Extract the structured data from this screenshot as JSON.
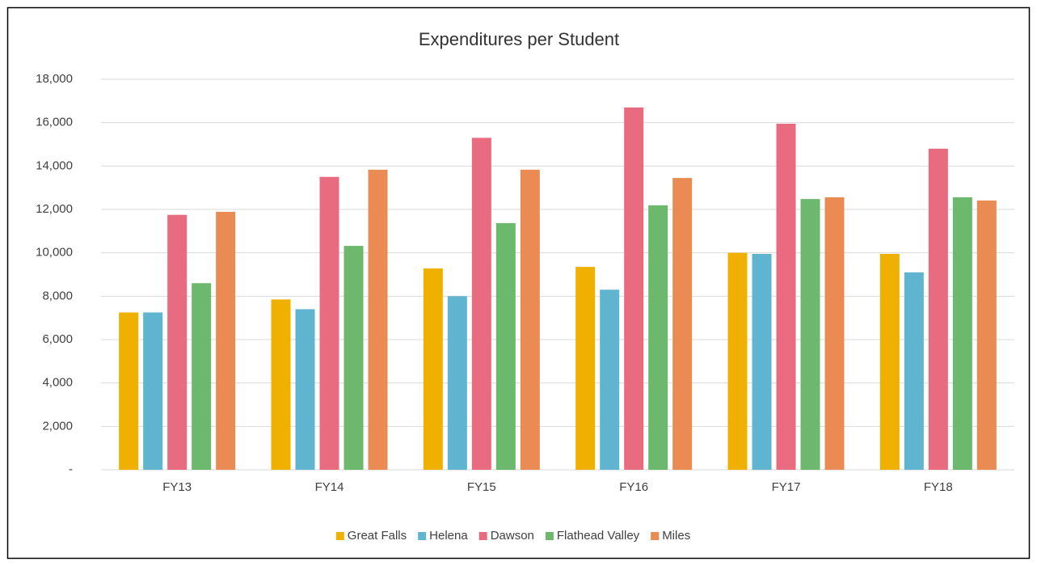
{
  "chart_data": {
    "type": "bar",
    "title": "Expenditures per Student",
    "categories": [
      "FY13",
      "FY14",
      "FY15",
      "FY16",
      "FY17",
      "FY18"
    ],
    "series": [
      {
        "name": "Great Falls",
        "color": "#f0b000",
        "values": [
          7250,
          7850,
          9280,
          9350,
          10000,
          9950
        ]
      },
      {
        "name": "Helena",
        "color": "#5fb4cf",
        "values": [
          7250,
          7400,
          8000,
          8300,
          9950,
          9100
        ]
      },
      {
        "name": "Dawson",
        "color": "#e96b80",
        "values": [
          11750,
          13500,
          15300,
          16700,
          15950,
          14800
        ]
      },
      {
        "name": "Flathead Valley",
        "color": "#6cb86c",
        "values": [
          8600,
          10320,
          11370,
          12190,
          12480,
          12560
        ]
      },
      {
        "name": "Miles",
        "color": "#e98b53",
        "values": [
          11890,
          13830,
          13830,
          13450,
          12560,
          12410
        ]
      }
    ],
    "ylim": [
      0,
      18000
    ],
    "yticks": [
      {
        "value": 0,
        "label": "-"
      },
      {
        "value": 2000,
        "label": "2,000"
      },
      {
        "value": 4000,
        "label": "4,000"
      },
      {
        "value": 6000,
        "label": "6,000"
      },
      {
        "value": 8000,
        "label": "8,000"
      },
      {
        "value": 10000,
        "label": "10,000"
      },
      {
        "value": 12000,
        "label": "12,000"
      },
      {
        "value": 14000,
        "label": "14,000"
      },
      {
        "value": 16000,
        "label": "16,000"
      },
      {
        "value": 18000,
        "label": "18,000"
      }
    ],
    "grid": true,
    "legend": "bottom"
  }
}
